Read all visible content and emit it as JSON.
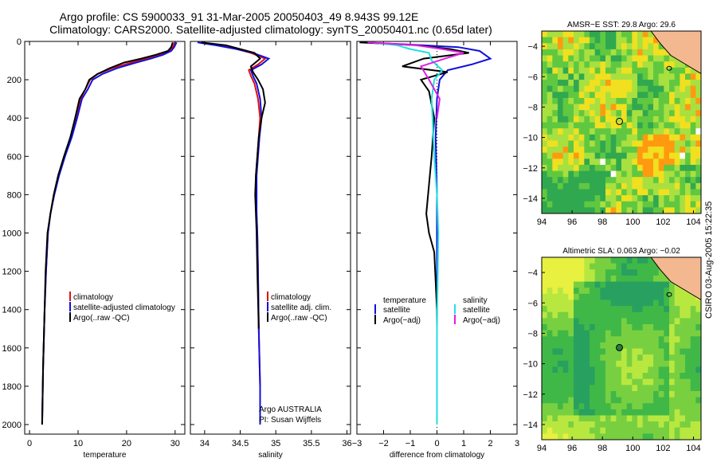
{
  "header": {
    "line1": "Argo profile: CS 5900033_91 31-Mar-2005 20050403_49 8.943S 99.12E",
    "line2": "Climatology: CARS2000. Satellite-adjusted climatology: synTS_20050401.nc (0.65d later)"
  },
  "credit": "CSIRO 03-Aug-2005 15:22:35",
  "colors": {
    "climatology": "#e01010",
    "satellite": "#1010e0",
    "argo": "#000000",
    "cyan": "#20e0e0",
    "magenta": "#e020e0"
  },
  "chart_data": [
    {
      "type": "line",
      "id": "temperature",
      "xlabel": "temperature",
      "ylabel": "",
      "xlim": [
        -1,
        32
      ],
      "ylim": [
        2050,
        0
      ],
      "xticks": [
        0,
        10,
        20,
        30
      ],
      "yticks": [
        0,
        200,
        400,
        600,
        800,
        1000,
        1200,
        1400,
        1600,
        1800,
        2000
      ],
      "legend": [
        "climatology",
        "satellite-adjusted climatology",
        "Argo(..raw  -QC)"
      ],
      "series": [
        {
          "name": "climatology",
          "color": "climatology",
          "x": [
            29.9,
            29.5,
            28.8,
            27,
            24,
            21,
            17,
            14,
            12.5,
            11.5,
            10.5,
            9.5,
            8.5,
            7.2,
            6,
            5,
            4.3,
            3.8,
            3.4,
            3.1,
            2.8,
            2.6
          ],
          "y": [
            5,
            30,
            50,
            70,
            90,
            110,
            140,
            170,
            200,
            250,
            300,
            400,
            500,
            600,
            700,
            800,
            900,
            1000,
            1200,
            1400,
            1700,
            2000
          ]
        },
        {
          "name": "satellite",
          "color": "satellite",
          "x": [
            30.3,
            29.8,
            29.2,
            27.5,
            25,
            22,
            18,
            15,
            13,
            12,
            10.8,
            9.8,
            8.7,
            7.3,
            6.1,
            5.1,
            4.3,
            3.8,
            3.4,
            3.1,
            2.8,
            2.6
          ],
          "y": [
            5,
            30,
            50,
            70,
            90,
            110,
            140,
            170,
            200,
            250,
            300,
            400,
            500,
            600,
            700,
            800,
            900,
            1000,
            1200,
            1400,
            1700,
            2000
          ]
        },
        {
          "name": "argo",
          "color": "argo",
          "x": [
            29.5,
            29.2,
            28.5,
            26,
            23,
            19.5,
            16.5,
            14,
            12.3,
            11.5,
            10.3,
            9.4,
            8.4,
            7.1,
            5.9,
            5,
            4.3,
            3.7,
            3.3,
            3.1,
            2.8,
            2.6
          ],
          "y": [
            5,
            30,
            50,
            70,
            90,
            110,
            140,
            170,
            200,
            250,
            300,
            400,
            500,
            600,
            700,
            800,
            900,
            1000,
            1200,
            1400,
            1700,
            2000
          ]
        }
      ]
    },
    {
      "type": "line",
      "id": "salinity",
      "xlabel": "salinity",
      "xlim": [
        33.8,
        36.05
      ],
      "ylim": [
        2050,
        0
      ],
      "xticks": [
        34,
        34.5,
        35,
        35.5,
        36
      ],
      "yticks": [
        0,
        200,
        400,
        600,
        800,
        1000,
        1200,
        1400,
        1600,
        1800,
        2000
      ],
      "legend": [
        "climatology",
        "satellite adj. clim.",
        "Argo(..raw  -QC)"
      ],
      "annotation": [
        "Argo AUSTRALIA",
        "PI: Susan Wijffels"
      ],
      "series": [
        {
          "name": "climatology",
          "color": "climatology",
          "x": [
            33.95,
            34.2,
            34.45,
            34.65,
            34.85,
            34.75,
            34.62,
            34.65,
            34.7,
            34.75,
            34.78,
            34.76,
            34.74,
            34.72,
            34.72,
            34.73,
            34.74,
            34.75,
            34.76,
            34.78
          ],
          "y": [
            5,
            20,
            40,
            60,
            90,
            120,
            150,
            180,
            220,
            300,
            400,
            500,
            600,
            700,
            800,
            900,
            1000,
            1200,
            1500,
            1800
          ]
        },
        {
          "name": "satellite",
          "color": "satellite",
          "x": [
            33.9,
            34.15,
            34.45,
            34.68,
            34.9,
            34.8,
            34.65,
            34.68,
            34.73,
            34.78,
            34.8,
            34.77,
            34.75,
            34.73,
            34.73,
            34.73,
            34.74,
            34.75,
            34.76,
            34.78,
            34.78
          ],
          "y": [
            5,
            20,
            40,
            60,
            90,
            120,
            150,
            180,
            220,
            300,
            400,
            500,
            600,
            700,
            800,
            900,
            1000,
            1200,
            1500,
            1800,
            2000
          ]
        },
        {
          "name": "argo",
          "color": "argo",
          "x": [
            33.95,
            34.3,
            34.5,
            34.7,
            34.78,
            34.65,
            34.68,
            34.75,
            34.82,
            34.85,
            34.8,
            34.76,
            34.74,
            34.72,
            34.71,
            34.72,
            34.73,
            34.74,
            34.76
          ],
          "y": [
            5,
            20,
            40,
            60,
            90,
            130,
            160,
            200,
            250,
            320,
            400,
            500,
            600,
            700,
            800,
            900,
            1000,
            1200,
            1500
          ]
        }
      ]
    },
    {
      "type": "line",
      "id": "difference",
      "xlabel": "difference from climatology",
      "xlim": [
        -3,
        3
      ],
      "ylim": [
        2050,
        0
      ],
      "xticks": [
        -3,
        -2,
        -1,
        0,
        1,
        2,
        3
      ],
      "yticks": [
        0,
        200,
        400,
        600,
        800,
        1000,
        1200,
        1400,
        1600,
        1800,
        2000
      ],
      "legend_left": {
        "title": "temperature",
        "items": [
          "satellite",
          "Argo(−adj)"
        ]
      },
      "legend_right": {
        "title": "salinity",
        "items": [
          "satellite",
          "Argo(−adj)"
        ]
      },
      "series": [
        {
          "name": "temperature satellite",
          "color": "satellite",
          "x": [
            -2.8,
            -1.2,
            0.8,
            1.6,
            2,
            1.3,
            0.4,
            0.1,
            0,
            -0.05,
            0,
            0,
            0,
            0,
            0
          ],
          "y": [
            5,
            15,
            30,
            50,
            90,
            120,
            150,
            200,
            300,
            500,
            800,
            1000,
            1300,
            1600,
            2000
          ]
        },
        {
          "name": "temperature Argo",
          "color": "argo",
          "x": [
            -2.9,
            -0.8,
            0.5,
            1.2,
            -0.5,
            -1.3,
            0.4,
            -0.6,
            -0.3,
            -0.1,
            -0.2,
            -0.4,
            -0.3,
            -0.1,
            0,
            0
          ],
          "y": [
            5,
            20,
            40,
            60,
            90,
            130,
            160,
            200,
            260,
            400,
            600,
            900,
            1000,
            1100,
            1400,
            2000
          ]
        },
        {
          "name": "salinity satellite",
          "color": "cyan",
          "x": [
            -2.5,
            -1.5,
            -1,
            -0.3,
            -0.2,
            0.2,
            -0.1,
            -0.2,
            -0.1,
            0,
            0.05,
            0,
            0
          ],
          "y": [
            5,
            20,
            40,
            60,
            100,
            150,
            200,
            300,
            600,
            800,
            1000,
            1500,
            2000
          ]
        },
        {
          "name": "salinity Argo",
          "color": "magenta",
          "x": [
            -2.6,
            -0.8,
            0.2,
            1,
            0.3,
            -0.6,
            -0.3,
            0.1,
            0
          ],
          "y": [
            5,
            20,
            40,
            60,
            90,
            130,
            200,
            300,
            400
          ]
        }
      ]
    },
    {
      "type": "heatmap",
      "id": "sst-map",
      "title": "AMSR−E SST: 29.8 Argo: 29.6",
      "xlim": [
        94,
        104.5
      ],
      "ylim": [
        -15,
        -3
      ],
      "xticks": [
        94,
        96,
        98,
        100,
        102,
        104
      ],
      "yticks": [
        -4,
        -6,
        -8,
        -10,
        -12,
        -14
      ],
      "marker": {
        "lon": 99.12,
        "lat": -8.943
      }
    },
    {
      "type": "heatmap",
      "id": "sla-map",
      "title": "Altimetric SLA: 0.063 Argo: −0.02",
      "xlim": [
        94,
        104.5
      ],
      "ylim": [
        -15,
        -3
      ],
      "xticks": [
        94,
        96,
        98,
        100,
        102,
        104
      ],
      "yticks": [
        -4,
        -6,
        -8,
        -10,
        -12,
        -14
      ],
      "marker": {
        "lon": 99.12,
        "lat": -8.943
      }
    }
  ]
}
